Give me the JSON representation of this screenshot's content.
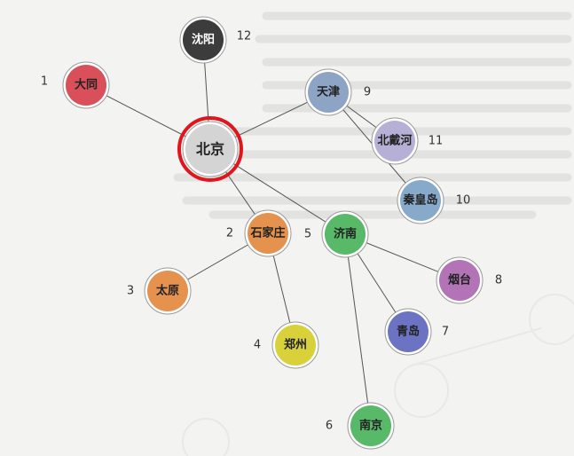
{
  "nodes": [
    {
      "id": "beijing",
      "label": "北京",
      "number": "",
      "color": "#d4d4d4",
      "text_color": "#222",
      "highlight": "#e0161e"
    },
    {
      "id": "datong",
      "label": "大同",
      "number": "1",
      "color": "#d9505a",
      "text_color": "#222"
    },
    {
      "id": "shenyang",
      "label": "沈阳",
      "number": "12",
      "color": "#3c3c3c",
      "text_color": "#ffffff"
    },
    {
      "id": "tianjin",
      "label": "天津",
      "number": "9",
      "color": "#8ea4c4",
      "text_color": "#222"
    },
    {
      "id": "beidaihe",
      "label": "北戴河",
      "number": "11",
      "color": "#b7b0d6",
      "text_color": "#222"
    },
    {
      "id": "qinhuangdao",
      "label": "秦皇岛",
      "number": "10",
      "color": "#87aacb",
      "text_color": "#222"
    },
    {
      "id": "shijiazhuang",
      "label": "石家庄",
      "number": "2",
      "color": "#e5924f",
      "text_color": "#222"
    },
    {
      "id": "jinan",
      "label": "济南",
      "number": "5",
      "color": "#58b968",
      "text_color": "#222"
    },
    {
      "id": "taiyuan",
      "label": "太原",
      "number": "3",
      "color": "#e5924f",
      "text_color": "#222"
    },
    {
      "id": "zhengzhou",
      "label": "郑州",
      "number": "4",
      "color": "#d8d13a",
      "text_color": "#222"
    },
    {
      "id": "yantai",
      "label": "烟台",
      "number": "8",
      "color": "#b274b6",
      "text_color": "#222"
    },
    {
      "id": "qingdao",
      "label": "青岛",
      "number": "7",
      "color": "#6b73c2",
      "text_color": "#222"
    },
    {
      "id": "nanjing",
      "label": "南京",
      "number": "6",
      "color": "#58b968",
      "text_color": "#222"
    }
  ],
  "edges": [
    [
      "beijing",
      "datong"
    ],
    [
      "beijing",
      "shenyang"
    ],
    [
      "beijing",
      "tianjin"
    ],
    [
      "tianjin",
      "beidaihe"
    ],
    [
      "tianjin",
      "qinhuangdao"
    ],
    [
      "beijing",
      "shijiazhuang"
    ],
    [
      "beijing",
      "jinan"
    ],
    [
      "shijiazhuang",
      "taiyuan"
    ],
    [
      "shijiazhuang",
      "zhengzhou"
    ],
    [
      "jinan",
      "yantai"
    ],
    [
      "jinan",
      "qingdao"
    ],
    [
      "jinan",
      "nanjing"
    ]
  ],
  "colors": {
    "background": "#f3f3f1",
    "edge": "#555555",
    "node_ring": "#ffffff",
    "highlight_ring": "#e0161e"
  }
}
